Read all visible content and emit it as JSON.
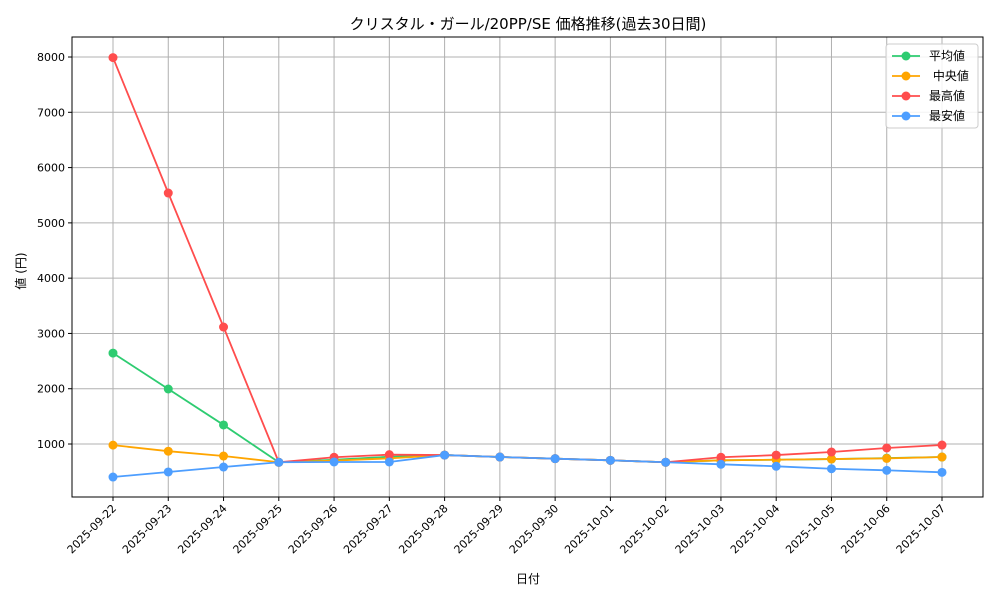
{
  "chart_data": {
    "type": "line",
    "title": "クリスタル・ガール/20PP/SE 価格推移(過去30日間)",
    "xlabel": "日付",
    "ylabel": "値 (円)",
    "ylim": [
      0,
      8350
    ],
    "yticks": [
      1000,
      2000,
      3000,
      4000,
      5000,
      6000,
      7000,
      8000
    ],
    "grid": true,
    "legend_position": "top-right",
    "categories": [
      "2025-09-22",
      "2025-09-23",
      "2025-09-24",
      "2025-09-25",
      "2025-09-26",
      "2025-09-27",
      "2025-09-28",
      "2025-09-29",
      "2025-09-30",
      "2025-10-01",
      "2025-10-02",
      "2025-10-03",
      "2025-10-04",
      "2025-10-05",
      "2025-10-06",
      "2025-10-07"
    ],
    "series": [
      {
        "name": "平均値",
        "color": "#2ecc71",
        "values": [
          2645,
          1995,
          1345,
          670,
          715,
          770,
          800,
          765,
          735,
          705,
          670,
          705,
          716,
          728,
          745,
          765
        ]
      },
      {
        "name": " 中央値",
        "color": "#ffa500",
        "values": [
          980,
          870,
          783,
          670,
          700,
          740,
          800,
          765,
          735,
          705,
          670,
          705,
          716,
          728,
          740,
          765
        ]
      },
      {
        "name": "最高値",
        "color": "#ff4d4d",
        "values": [
          7990,
          5540,
          3116,
          670,
          760,
          807,
          800,
          765,
          735,
          705,
          670,
          760,
          800,
          855,
          928,
          982
        ]
      },
      {
        "name": "最安値",
        "color": "#4d9eff",
        "values": [
          403,
          494,
          584,
          670,
          675,
          675,
          800,
          765,
          735,
          705,
          670,
          633,
          597,
          553,
          524,
          488
        ]
      }
    ]
  }
}
